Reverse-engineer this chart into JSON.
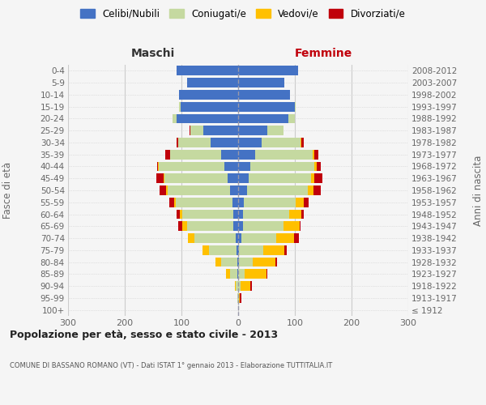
{
  "age_groups": [
    "100+",
    "95-99",
    "90-94",
    "85-89",
    "80-84",
    "75-79",
    "70-74",
    "65-69",
    "60-64",
    "55-59",
    "50-54",
    "45-49",
    "40-44",
    "35-39",
    "30-34",
    "25-29",
    "20-24",
    "15-19",
    "10-14",
    "5-9",
    "0-4"
  ],
  "birth_years": [
    "≤ 1912",
    "1913-1917",
    "1918-1922",
    "1923-1927",
    "1928-1932",
    "1933-1937",
    "1938-1942",
    "1943-1947",
    "1948-1952",
    "1953-1957",
    "1958-1962",
    "1963-1967",
    "1968-1972",
    "1973-1977",
    "1978-1982",
    "1983-1987",
    "1988-1992",
    "1993-1997",
    "1998-2002",
    "2003-2007",
    "2008-2012"
  ],
  "maschi": {
    "celibi": [
      0,
      0,
      0,
      1,
      2,
      3,
      5,
      8,
      8,
      10,
      15,
      18,
      25,
      30,
      48,
      62,
      108,
      102,
      105,
      90,
      108
    ],
    "coniugati": [
      0,
      1,
      4,
      14,
      28,
      48,
      72,
      82,
      90,
      100,
      110,
      112,
      115,
      90,
      58,
      22,
      8,
      2,
      0,
      0,
      0
    ],
    "vedovi": [
      0,
      0,
      2,
      6,
      10,
      12,
      12,
      8,
      5,
      3,
      2,
      1,
      1,
      0,
      0,
      0,
      0,
      0,
      0,
      0,
      0
    ],
    "divorziati": [
      0,
      0,
      0,
      0,
      0,
      0,
      0,
      8,
      5,
      8,
      12,
      14,
      2,
      8,
      2,
      2,
      0,
      0,
      0,
      0,
      0
    ]
  },
  "femmine": {
    "nubili": [
      0,
      0,
      0,
      0,
      1,
      2,
      5,
      8,
      8,
      10,
      15,
      18,
      22,
      30,
      42,
      52,
      88,
      100,
      92,
      82,
      105
    ],
    "coniugate": [
      0,
      1,
      4,
      12,
      24,
      42,
      62,
      72,
      82,
      92,
      108,
      110,
      112,
      102,
      68,
      28,
      12,
      2,
      0,
      0,
      0
    ],
    "vedove": [
      0,
      2,
      18,
      38,
      40,
      38,
      32,
      28,
      22,
      14,
      10,
      6,
      4,
      2,
      1,
      0,
      0,
      0,
      0,
      0,
      0
    ],
    "divorziate": [
      0,
      2,
      2,
      2,
      3,
      3,
      8,
      2,
      4,
      8,
      12,
      14,
      8,
      8,
      5,
      0,
      0,
      0,
      0,
      0,
      0
    ]
  },
  "colors": {
    "celibi": "#4472c4",
    "coniugati": "#c5d9a0",
    "vedovi": "#ffc000",
    "divorziati": "#c0000b"
  },
  "xlim": 300,
  "title": "Popolazione per età, sesso e stato civile - 2013",
  "subtitle": "COMUNE DI BASSANO ROMANO (VT) - Dati ISTAT 1° gennaio 2013 - Elaborazione TUTTITALIA.IT",
  "ylabel_left": "Fasce di età",
  "ylabel_right": "Anni di nascita",
  "xlabel_left": "Maschi",
  "xlabel_right": "Femmine",
  "legend_labels": [
    "Celibi/Nubili",
    "Coniugati/e",
    "Vedovi/e",
    "Divorziati/e"
  ],
  "bg_color": "#f5f5f5",
  "grid_color": "#cccccc"
}
